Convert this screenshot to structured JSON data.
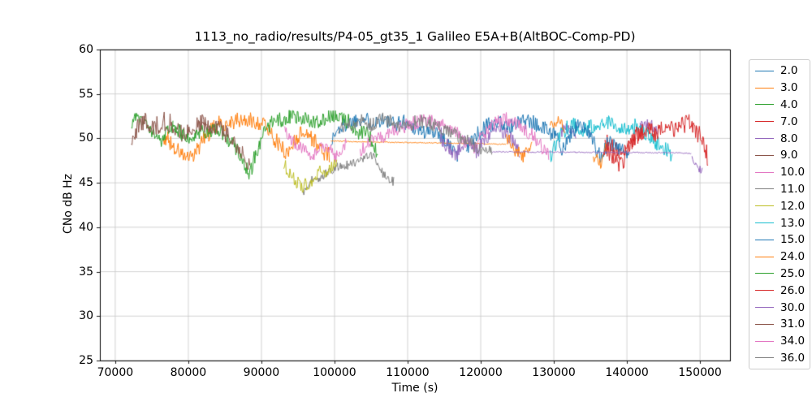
{
  "chart_data": {
    "type": "line",
    "title": "1113_no_radio/results/P4-05_gt35_1 Galileo E5A+B(AltBOC-Comp-PD)",
    "xlabel": "Time (s)",
    "ylabel": "CNo dB Hz",
    "xlim": [
      67900,
      154100
    ],
    "ylim": [
      25,
      60
    ],
    "xticks": [
      70000,
      80000,
      90000,
      100000,
      110000,
      120000,
      130000,
      140000,
      150000
    ],
    "yticks": [
      25,
      30,
      35,
      40,
      45,
      50,
      55,
      60
    ],
    "grid": true,
    "grid_color": "#c6c6c6",
    "legend_position": "right",
    "series": [
      {
        "name": "2.0",
        "color": "#1f77b4",
        "segments": [
          {
            "x": [
              99600,
              100500,
              102000,
              103500,
              105000,
              106500,
              108000,
              109500,
              111000,
              112500,
              114000,
              115300,
              116300,
              117000
            ],
            "y": [
              49.8,
              51.0,
              51.8,
              52.3,
              51.9,
              52.1,
              51.6,
              51.9,
              51.2,
              50.6,
              50.9,
              49.6,
              48.6,
              48.0
            ],
            "noise": 0.9
          }
        ]
      },
      {
        "name": "3.0",
        "color": "#ff7f0e",
        "segments": [
          {
            "x": [
              76500,
              77500,
              79000,
              80500,
              82000,
              84000,
              86000,
              88000,
              90000,
              91200,
              92400,
              93600,
              94800,
              96000,
              97200,
              98300,
              99300
            ],
            "y": [
              50.4,
              49.6,
              48.2,
              47.6,
              49.8,
              51.6,
              51.9,
              52.0,
              51.8,
              50.8,
              49.2,
              48.3,
              50.2,
              50.8,
              49.8,
              48.6,
              48.1
            ],
            "noise": 0.95
          },
          {
            "x": [
              99500,
              105000,
              112000,
              118000,
              123500
            ],
            "y": [
              49.7,
              49.6,
              49.5,
              49.45,
              49.35
            ],
            "noise": 0.06
          }
        ]
      },
      {
        "name": "4.0",
        "color": "#2ca02c",
        "segments": [
          {
            "x": [
              72200,
              73000,
              74000,
              75200,
              76200,
              77000,
              77900
            ],
            "y": [
              51.8,
              52.3,
              51.6,
              50.4,
              49.7,
              50.9,
              51.4
            ],
            "noise": 0.8
          }
        ]
      },
      {
        "name": "7.0",
        "color": "#d62728",
        "segments": [
          {
            "x": [
              137000,
              138200,
              139500,
              141000,
              142500,
              144000
            ],
            "y": [
              50.0,
              48.8,
              48.0,
              50.0,
              51.0,
              50.4
            ],
            "noise": 1.0
          }
        ]
      },
      {
        "name": "8.0",
        "color": "#9467bd",
        "segments": [
          {
            "x": [
              114500,
              115500,
              116800,
              118000,
              119500,
              121000,
              122500,
              124000,
              125300
            ],
            "y": [
              50.4,
              49.0,
              48.3,
              49.6,
              48.4,
              50.5,
              51.2,
              50.0,
              48.3
            ],
            "noise": 1.0
          },
          {
            "x": [
              131000,
              132000,
              133000
            ],
            "y": [
              50.8,
              51.3,
              50.6
            ],
            "noise": 0.7
          },
          {
            "x": [
              141800,
              143000,
              144300
            ],
            "y": [
              51.2,
              51.7,
              50.9
            ],
            "noise": 0.7
          }
        ]
      },
      {
        "name": "9.0",
        "color": "#8c564b",
        "segments": [
          {
            "x": [
              72200,
              72900,
              74000,
              75500,
              77000,
              78500,
              79600,
              81000,
              82500
            ],
            "y": [
              48.8,
              51.0,
              51.9,
              51.4,
              52.0,
              51.1,
              50.2,
              51.4,
              51.8
            ],
            "noise": 1.1
          }
        ]
      },
      {
        "name": "10.0",
        "color": "#e377c2",
        "segments": [
          {
            "x": [
              93200,
              94000,
              95000,
              96200,
              97200,
              98200,
              99300,
              100200,
              100900,
              101600
            ],
            "y": [
              50.8,
              50.0,
              49.2,
              48.4,
              48.0,
              49.4,
              48.8,
              47.9,
              48.7,
              49.6
            ],
            "noise": 0.7
          }
        ]
      },
      {
        "name": "11.0",
        "color": "#7f7f7f",
        "segments": [
          {
            "x": [
              95600,
              96100,
              96900,
              97900,
              99000,
              100500,
              102000,
              103500,
              104500,
              105500,
              106400,
              107100,
              107700,
              108100
            ],
            "y": [
              43.8,
              44.4,
              45.3,
              45.0,
              46.3,
              46.8,
              47.0,
              47.3,
              48.2,
              47.7,
              46.4,
              45.5,
              45.0,
              45.3
            ],
            "noise": 0.55
          }
        ]
      },
      {
        "name": "12.0",
        "color": "#bcbd22",
        "segments": [
          {
            "x": [
              93000,
              93800,
              94800,
              95800,
              96800,
              97800,
              98800,
              99600,
              100300
            ],
            "y": [
              47.2,
              46.0,
              45.1,
              44.6,
              45.3,
              46.3,
              46.0,
              46.6,
              47.1
            ],
            "noise": 0.8
          }
        ]
      },
      {
        "name": "13.0",
        "color": "#17becf",
        "segments": [
          {
            "x": [
              129500,
              130300,
              131300,
              132500,
              134000,
              135500,
              137000,
              138500,
              140000,
              141500,
              143000,
              144300,
              145300,
              146200
            ],
            "y": [
              47.8,
              49.6,
              50.9,
              51.5,
              51.0,
              51.5,
              52.0,
              51.4,
              51.0,
              51.5,
              50.4,
              49.4,
              48.8,
              48.0
            ],
            "noise": 0.9
          }
        ]
      },
      {
        "name": "15.0",
        "color": "#1f77b4",
        "segments": [
          {
            "x": [
              118000,
              119500,
              121000,
              122500,
              124000,
              125500,
              127000,
              128500,
              130000,
              131200,
              132300,
              133500,
              135000,
              136300,
              137500,
              139000,
              140300
            ],
            "y": [
              49.0,
              50.5,
              51.5,
              52.0,
              51.4,
              52.0,
              51.8,
              51.4,
              50.4,
              48.8,
              50.5,
              51.4,
              50.4,
              47.9,
              49.5,
              48.8,
              48.0
            ],
            "noise": 0.9
          }
        ]
      },
      {
        "name": "24.0",
        "color": "#ff7f0e",
        "segments": [
          {
            "x": [
              123500,
              124500,
              125800,
              127000
            ],
            "y": [
              50.2,
              48.8,
              47.9,
              49.8
            ],
            "noise": 0.8
          },
          {
            "x": [
              129500,
              130500,
              131500
            ],
            "y": [
              51.5,
              52.0,
              51.3
            ],
            "noise": 0.7
          },
          {
            "x": [
              135400,
              136300,
              137200
            ],
            "y": [
              48.2,
              47.3,
              49.0
            ],
            "noise": 0.9
          }
        ]
      },
      {
        "name": "25.0",
        "color": "#2ca02c",
        "segments": [
          {
            "x": [
              77900,
              79000,
              80500,
              82000,
              83500,
              85000,
              86500,
              87600,
              88400,
              89200,
              90200,
              91500,
              93000,
              94500,
              96000,
              97500,
              99000,
              100500,
              102000,
              103300,
              104300,
              105200,
              105900
            ],
            "y": [
              51.4,
              50.6,
              50.1,
              50.8,
              51.0,
              50.4,
              49.0,
              47.2,
              46.0,
              48.2,
              50.5,
              51.8,
              52.2,
              52.5,
              52.2,
              52.0,
              52.3,
              52.4,
              51.8,
              50.5,
              50.8,
              49.6,
              48.4
            ],
            "noise": 0.9
          }
        ]
      },
      {
        "name": "26.0",
        "color": "#d62728",
        "segments": [
          {
            "x": [
              136800,
              138000,
              139300,
              140100,
              141200,
              142500,
              144000,
              145500,
              147000,
              148300,
              149500,
              150400,
              151100
            ],
            "y": [
              49.0,
              48.0,
              47.0,
              48.6,
              50.3,
              51.0,
              50.5,
              51.3,
              51.0,
              51.8,
              51.0,
              49.4,
              47.8
            ],
            "noise": 1.1
          }
        ]
      },
      {
        "name": "30.0",
        "color": "#9467bd",
        "segments": [
          {
            "x": [
              121500,
              130000,
              140000,
              146500,
              148800
            ],
            "y": [
              48.5,
              48.45,
              48.42,
              48.4,
              48.3
            ],
            "noise": 0.07
          },
          {
            "x": [
              148900,
              149600,
              150300
            ],
            "y": [
              48.0,
              46.9,
              46.2
            ],
            "noise": 0.5
          }
        ]
      },
      {
        "name": "31.0",
        "color": "#8c564b",
        "segments": [
          {
            "x": [
              81500,
              83000,
              84500,
              85800,
              86900,
              87700,
              88400
            ],
            "y": [
              51.8,
              51.4,
              51.0,
              50.0,
              48.8,
              47.8,
              47.2
            ],
            "noise": 1.0
          }
        ]
      },
      {
        "name": "34.0",
        "color": "#e377c2",
        "segments": [
          {
            "x": [
              103500,
              105000,
              106500,
              108000,
              110000,
              112000,
              114000,
              116000,
              117500,
              119000,
              120500,
              122000,
              123500,
              125000,
              126300,
              127500,
              128500,
              129300
            ],
            "y": [
              48.6,
              49.6,
              50.2,
              50.8,
              51.5,
              52.0,
              51.8,
              51.3,
              50.0,
              48.9,
              50.5,
              51.8,
              52.2,
              51.5,
              50.8,
              50.0,
              48.9,
              47.9
            ],
            "noise": 0.8
          }
        ]
      },
      {
        "name": "36.0",
        "color": "#7f7f7f",
        "segments": [
          {
            "x": [
              100500,
              102000,
              103500,
              105000,
              106500,
              108000,
              109500,
              111000,
              112500,
              114000,
              115500,
              117000,
              118300,
              119600,
              120700,
              121500
            ],
            "y": [
              50.8,
              51.5,
              52.0,
              51.5,
              52.2,
              51.8,
              51.3,
              51.8,
              52.0,
              51.4,
              50.8,
              50.2,
              49.6,
              49.0,
              48.6,
              48.4
            ],
            "noise": 0.8
          }
        ]
      }
    ]
  }
}
